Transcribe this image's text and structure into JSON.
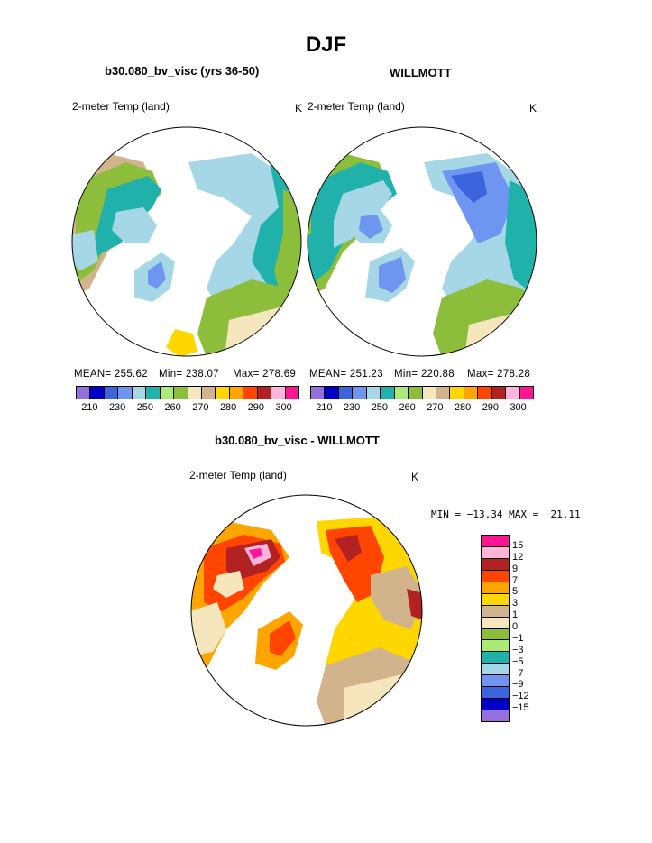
{
  "figure": {
    "title": "DJF",
    "left_title": "b30.080_bv_visc (yrs 36-50)",
    "right_title": "WILLMOTT",
    "diff_title": "b30.080_bv_visc - WILLMOTT"
  },
  "panels": {
    "left": {
      "variable": "2-meter Temp (land)",
      "units": "K",
      "mean_label": "MEAN= 255.62",
      "min_label": "Min= 238.07",
      "max_label": "Max= 278.69"
    },
    "right": {
      "variable": "2-meter Temp (land)",
      "units": "K",
      "mean_label": "MEAN= 251.23",
      "min_label": "Min= 220.88",
      "max_label": "Max= 278.28"
    },
    "diff": {
      "variable": "2-meter Temp (land)",
      "units": "K",
      "minmax_label": "MIN = −13.34 MAX =  21.11"
    }
  },
  "colorbar_temp": {
    "colors": [
      "#9370db",
      "#0000c8",
      "#3c64dc",
      "#6e96f0",
      "#a5d7e6",
      "#20b2aa",
      "#aaeb78",
      "#8cbe3c",
      "#f5e6be",
      "#d2b48c",
      "#ffd700",
      "#ffa500",
      "#ff4500",
      "#b22222",
      "#ffb4dc",
      "#ff1493"
    ],
    "labels": [
      "210",
      "230",
      "250",
      "260",
      "270",
      "280",
      "290",
      "300"
    ]
  },
  "colorbar_diff": {
    "colors": [
      "#ff1493",
      "#ffb4dc",
      "#b22222",
      "#ff4500",
      "#ffa500",
      "#ffd700",
      "#d2b48c",
      "#f5e6be",
      "#8cbe3c",
      "#aaeb78",
      "#20b2aa",
      "#a5d7e6",
      "#6e96f0",
      "#3c64dc",
      "#0000c8",
      "#9370db"
    ],
    "labels": [
      "15",
      "12",
      "9",
      "7",
      "5",
      "3",
      "1",
      "0",
      "−1",
      "−3",
      "−5",
      "−7",
      "−9",
      "−12",
      "−15"
    ]
  }
}
